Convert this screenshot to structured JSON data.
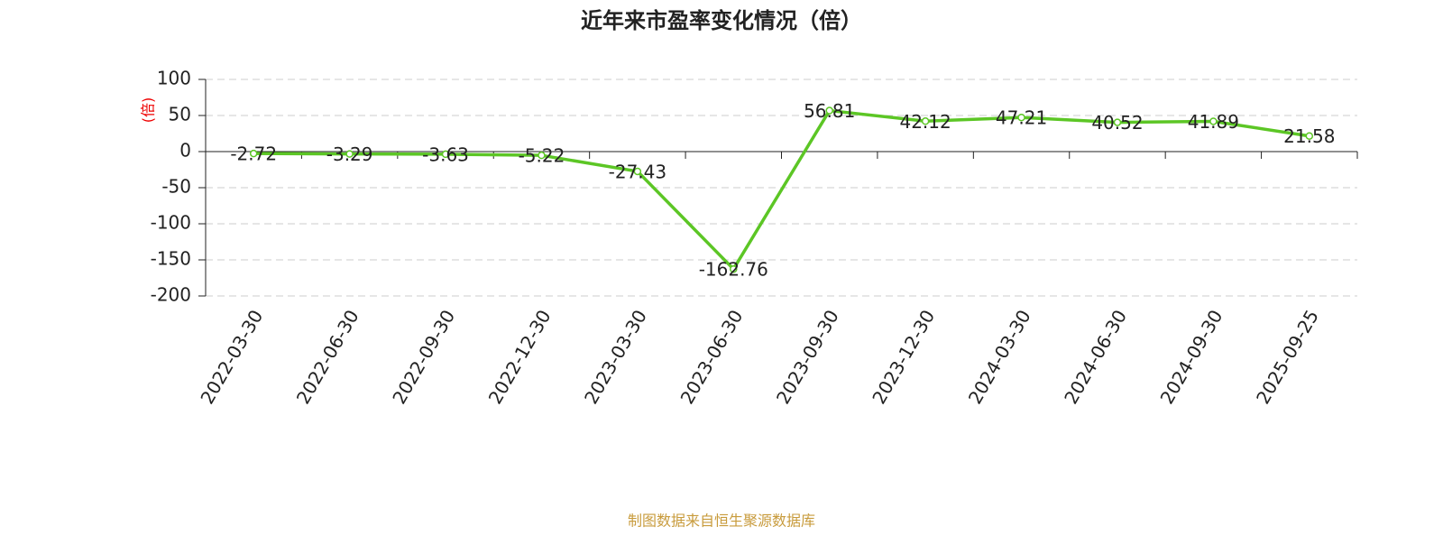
{
  "chart_data": {
    "type": "line",
    "title": "近年来市盈率变化情况（倍）",
    "y_label": "(倍)",
    "categories": [
      "2022-03-30",
      "2022-06-30",
      "2022-09-30",
      "2022-12-30",
      "2023-03-30",
      "2023-06-30",
      "2023-09-30",
      "2023-12-30",
      "2024-03-30",
      "2024-06-30",
      "2024-09-30",
      "2025-09-25"
    ],
    "series": [
      {
        "name": "市盈率",
        "color": "#5cc625",
        "values": [
          -2.72,
          -3.29,
          -3.63,
          -5.22,
          -27.43,
          -162.76,
          56.81,
          42.12,
          47.21,
          40.52,
          41.89,
          21.58
        ]
      }
    ],
    "ylim": [
      -200,
      100
    ],
    "yticks": [
      100,
      50,
      0,
      -50,
      -100,
      -150,
      -200
    ],
    "grid": true,
    "source": "制图数据来自恒生聚源数据库"
  }
}
